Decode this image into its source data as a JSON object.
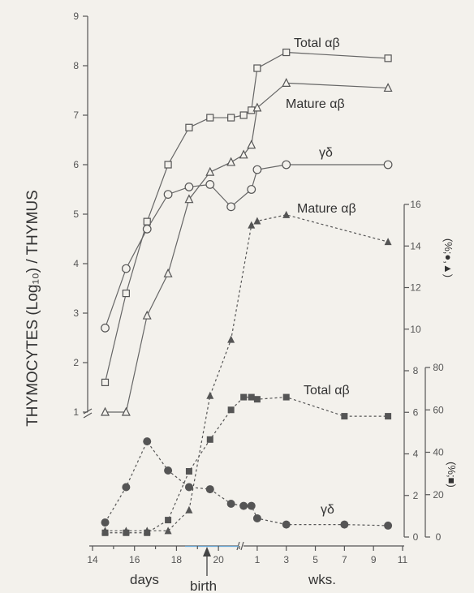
{
  "chart_data": {
    "type": "line",
    "y_left_label": "THYMOCYTES (Log₁₀) / THYMUS",
    "y_right1_label": "(%;●,▲)",
    "y_right2_label": "(%;■)",
    "x_ticks": [
      "14",
      "16",
      "18",
      "20",
      "1",
      "3",
      "5",
      "7",
      "9",
      "11"
    ],
    "x_label_days": "days",
    "x_label_weeks": "wks.",
    "birth_label": "birth",
    "y_left_ticks": [
      "1",
      "2",
      "3",
      "4",
      "5",
      "6",
      "7",
      "8",
      "9"
    ],
    "y_right1_ticks": [
      "0",
      "2",
      "4",
      "6",
      "8",
      "10",
      "12",
      "14",
      "16"
    ],
    "y_right2_ticks": [
      "0",
      "20",
      "40",
      "60",
      "80"
    ],
    "x_axis": {
      "days_range": [
        14,
        21
      ],
      "weeks_range": [
        0,
        11
      ],
      "break": true
    },
    "y_left_range": [
      1,
      9
    ],
    "y_right1_range": [
      0,
      16
    ],
    "y_right2_range": [
      0,
      80
    ],
    "series": [
      {
        "name": "Total αβ",
        "axis": "left",
        "marker": "open-square",
        "style": "solid",
        "points": [
          [
            14.6,
            1.6
          ],
          [
            15.6,
            3.4
          ],
          [
            16.6,
            4.85
          ],
          [
            17.6,
            6.0
          ],
          [
            18.6,
            6.75
          ],
          [
            19.6,
            6.95
          ],
          [
            20.6,
            6.95
          ],
          [
            21.2,
            7.0
          ],
          [
            "w0.6",
            7.1
          ],
          [
            "w1",
            7.95
          ],
          [
            "w3",
            8.27
          ],
          [
            "w10",
            8.15
          ]
        ]
      },
      {
        "name": "Mature αβ",
        "axis": "left",
        "marker": "open-triangle",
        "style": "solid",
        "points": [
          [
            14.6,
            1.0
          ],
          [
            15.6,
            1.0
          ],
          [
            16.6,
            2.95
          ],
          [
            17.6,
            3.8
          ],
          [
            18.6,
            5.3
          ],
          [
            19.6,
            5.85
          ],
          [
            20.6,
            6.05
          ],
          [
            21.2,
            6.2
          ],
          [
            "w0.6",
            6.4
          ],
          [
            "w1",
            7.15
          ],
          [
            "w3",
            7.65
          ],
          [
            "w10",
            7.55
          ]
        ]
      },
      {
        "name": "γδ",
        "axis": "left",
        "marker": "open-circle",
        "style": "solid",
        "points": [
          [
            14.6,
            2.7
          ],
          [
            15.6,
            3.9
          ],
          [
            16.6,
            4.7
          ],
          [
            17.6,
            5.4
          ],
          [
            18.6,
            5.55
          ],
          [
            19.6,
            5.6
          ],
          [
            20.6,
            5.15
          ],
          [
            "w0.6",
            5.5
          ],
          [
            "w1",
            5.9
          ],
          [
            "w3",
            6.0
          ],
          [
            "w10",
            6.0
          ]
        ]
      },
      {
        "name": "Mature αβ",
        "axis": "right1",
        "marker": "filled-triangle",
        "style": "dashed",
        "points": [
          [
            14.6,
            0.3
          ],
          [
            15.6,
            0.3
          ],
          [
            16.6,
            0.3
          ],
          [
            17.6,
            0.3
          ],
          [
            18.6,
            1.3
          ],
          [
            19.6,
            6.8
          ],
          [
            20.6,
            9.5
          ],
          [
            "w0.6",
            15.0
          ],
          [
            "w1",
            15.2
          ],
          [
            "w3",
            15.5
          ],
          [
            "w10",
            14.2
          ]
        ]
      },
      {
        "name": "Total αβ",
        "axis": "right2",
        "marker": "filled-square",
        "style": "dashed",
        "points": [
          [
            14.6,
            2
          ],
          [
            15.6,
            2
          ],
          [
            16.6,
            2
          ],
          [
            17.6,
            8
          ],
          [
            18.6,
            31
          ],
          [
            19.6,
            46
          ],
          [
            20.6,
            60
          ],
          [
            21.2,
            66
          ],
          [
            "w0.6",
            66
          ],
          [
            "w1",
            65
          ],
          [
            "w3",
            66
          ],
          [
            "w7",
            57
          ],
          [
            "w10",
            57
          ]
        ]
      },
      {
        "name": "γδ",
        "axis": "right1",
        "marker": "filled-circle",
        "style": "dashed",
        "points": [
          [
            14.6,
            0.7
          ],
          [
            15.6,
            2.4
          ],
          [
            16.6,
            4.6
          ],
          [
            17.6,
            3.2
          ],
          [
            18.6,
            2.4
          ],
          [
            19.6,
            2.3
          ],
          [
            20.6,
            1.6
          ],
          [
            21.2,
            1.5
          ],
          [
            "w0.6",
            1.5
          ],
          [
            "w1",
            0.9
          ],
          [
            "w3",
            0.6
          ],
          [
            "w7",
            0.6
          ],
          [
            "w10",
            0.55
          ]
        ]
      }
    ],
    "annotations": [
      {
        "text": "Total αβ",
        "near": "top series"
      },
      {
        "text": "Mature αβ",
        "near": "second series"
      },
      {
        "text": "γδ",
        "near": "third series"
      },
      {
        "text": "Mature αβ",
        "near": "filled triangles"
      },
      {
        "text": "Total αβ",
        "near": "filled squares"
      },
      {
        "text": "γδ",
        "near": "filled circles"
      }
    ]
  }
}
